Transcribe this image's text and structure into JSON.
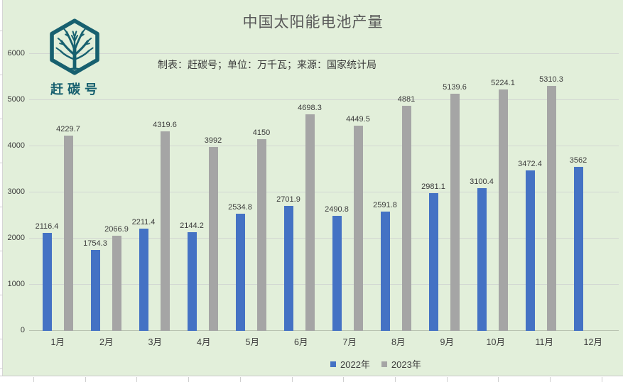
{
  "logo": {
    "text": "赶碳号",
    "color": "#17606f"
  },
  "title": {
    "text": "中国太阳能电池产量",
    "color": "#595959"
  },
  "subtitle": {
    "text": "制表：赶碳号；单位：万千瓦；来源：国家统计局"
  },
  "legend": {
    "items": [
      {
        "label": "2022年",
        "color": "#4472c4"
      },
      {
        "label": "2023年",
        "color": "#a5a5a5"
      }
    ]
  },
  "chart_data": {
    "type": "bar",
    "title": "中国太阳能电池产量",
    "subtitle": "制表：赶碳号；单位：万千瓦；来源：国家统计局",
    "categories": [
      "1月",
      "2月",
      "3月",
      "4月",
      "5月",
      "6月",
      "7月",
      "8月",
      "9月",
      "10月",
      "11月",
      "12月"
    ],
    "series": [
      {
        "name": "2022年",
        "color": "#4472c4",
        "values": [
          2116.4,
          1754.3,
          2211.4,
          2144.2,
          2534.8,
          2701.9,
          2490.8,
          2591.8,
          2981.1,
          3100.4,
          3472.4,
          3562
        ]
      },
      {
        "name": "2023年",
        "color": "#a5a5a5",
        "values": [
          4229.7,
          2066.9,
          4319.6,
          3992,
          4150,
          4698.3,
          4449.5,
          4881,
          5139.6,
          5224.1,
          5310.3,
          null
        ]
      }
    ],
    "ylabel": "",
    "xlabel": "",
    "ylim": [
      0,
      6000
    ],
    "ytick_step": 1000,
    "grid": true,
    "legend_position": "bottom",
    "plot_background": "#e2efda"
  }
}
